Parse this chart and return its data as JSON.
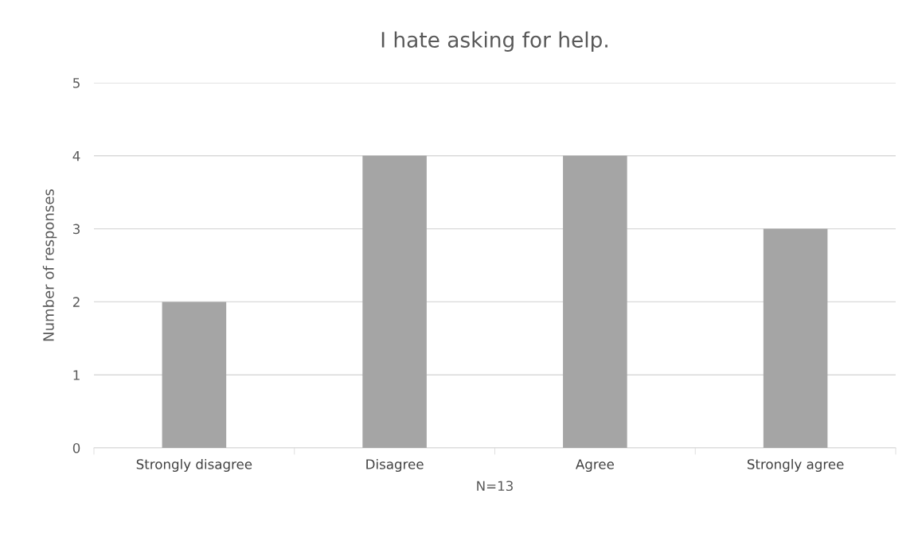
{
  "chart_data": {
    "type": "bar",
    "title": "I hate asking for help.",
    "xlabel": "N=13",
    "ylabel": "Number of responses",
    "categories": [
      "Strongly disagree",
      "Disagree",
      "Agree",
      "Strongly agree"
    ],
    "values": [
      2,
      4,
      4,
      3
    ],
    "color": "#a5a5a5",
    "ylim": [
      0,
      5
    ],
    "yticks": [
      0,
      1,
      2,
      3,
      4,
      5
    ],
    "grid": "y"
  }
}
